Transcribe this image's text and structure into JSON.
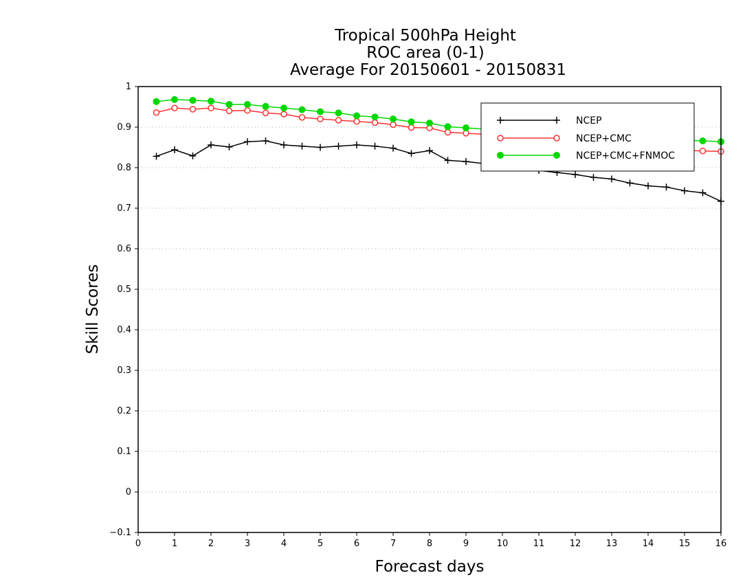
{
  "chart_data": {
    "type": "line",
    "title": [
      "Tropical 500hPa Height",
      "ROC area (0-1)",
      "Average For 20150601 - 20150831"
    ],
    "xlabel": "Forecast days",
    "ylabel": "Skill Scores",
    "xlim": [
      0,
      16
    ],
    "ylim": [
      -0.1,
      1
    ],
    "xticks": [
      "0",
      "1",
      "2",
      "3",
      "4",
      "5",
      "6",
      "7",
      "8",
      "9",
      "10",
      "11",
      "12",
      "13",
      "14",
      "15",
      "16"
    ],
    "yticks": [
      "−0.1",
      "0",
      "0.1",
      "0.2",
      "0.3",
      "0.4",
      "0.5",
      "0.6",
      "0.7",
      "0.8",
      "0.9",
      "1"
    ],
    "grid": "horizontal dotted",
    "legend_position": "top-right",
    "x": [
      0.5,
      1,
      1.5,
      2,
      2.5,
      3,
      3.5,
      4,
      4.5,
      5,
      5.5,
      6,
      6.5,
      7,
      7.5,
      8,
      8.5,
      9,
      9.5,
      10,
      10.5,
      11,
      11.5,
      12,
      12.5,
      13,
      13.5,
      14,
      14.5,
      15,
      15.5,
      16
    ],
    "series": [
      {
        "name": "NCEP",
        "color": "#000000",
        "marker": "plus",
        "values": [
          0.828,
          0.844,
          0.829,
          0.856,
          0.851,
          0.864,
          0.866,
          0.856,
          0.853,
          0.85,
          0.853,
          0.856,
          0.853,
          0.848,
          0.835,
          0.842,
          0.818,
          0.815,
          0.81,
          0.806,
          0.8,
          0.793,
          0.788,
          0.783,
          0.776,
          0.772,
          0.762,
          0.755,
          0.752,
          0.743,
          0.738,
          0.717
        ]
      },
      {
        "name": "NCEP+CMC",
        "color": "#ff3030",
        "marker": "open-circle",
        "values": [
          0.936,
          0.947,
          0.944,
          0.947,
          0.94,
          0.941,
          0.935,
          0.932,
          0.924,
          0.92,
          0.917,
          0.914,
          0.911,
          0.906,
          0.899,
          0.898,
          0.887,
          0.885,
          0.882,
          0.879,
          0.874,
          0.87,
          0.866,
          0.862,
          0.858,
          0.855,
          0.851,
          0.849,
          0.846,
          0.843,
          0.841,
          0.84
        ]
      },
      {
        "name": "NCEP+CMC+FNMOC",
        "color": "#00d800",
        "marker": "filled-circle",
        "values": [
          0.963,
          0.968,
          0.966,
          0.964,
          0.956,
          0.956,
          0.951,
          0.947,
          0.943,
          0.938,
          0.935,
          0.928,
          0.925,
          0.92,
          0.913,
          0.91,
          0.901,
          0.898,
          0.895,
          0.892,
          0.889,
          0.886,
          0.883,
          0.881,
          0.879,
          0.876,
          0.874,
          0.872,
          0.87,
          0.868,
          0.866,
          0.864
        ]
      }
    ]
  }
}
